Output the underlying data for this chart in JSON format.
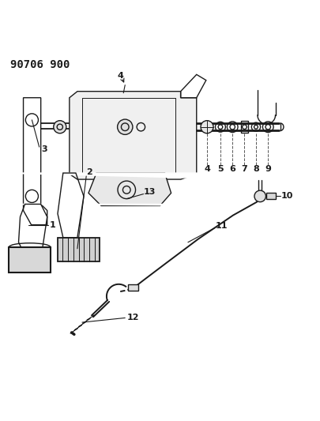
{
  "title": "90706 900",
  "background_color": "#ffffff",
  "line_color": "#1a1a1a",
  "title_fontsize": 10,
  "fig_width": 4.05,
  "fig_height": 5.33,
  "dpi": 100
}
